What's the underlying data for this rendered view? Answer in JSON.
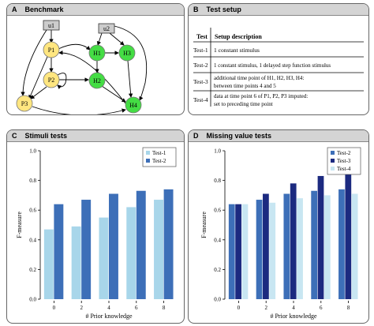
{
  "panels": {
    "A": {
      "letter": "A",
      "title": "Benchmark"
    },
    "B": {
      "letter": "B",
      "title": "Test setup"
    },
    "C": {
      "letter": "C",
      "title": "Stimuli tests"
    },
    "D": {
      "letter": "D",
      "title": "Missing value tests"
    }
  },
  "network": {
    "inputs": [
      "u1",
      "u2"
    ],
    "yellow_nodes": [
      "P1",
      "P2",
      "P3"
    ],
    "green_nodes": [
      "H1",
      "H2",
      "H3",
      "H4"
    ],
    "colors": {
      "yellow": "#ffe680",
      "green": "#44dd44",
      "input": "#cccccc"
    }
  },
  "setup_table": {
    "headers": [
      "Test",
      "Setup description"
    ],
    "rows": [
      {
        "test": "Test-1",
        "lines": [
          "1 constant stimulus"
        ]
      },
      {
        "test": "Test-2",
        "lines": [
          "1 constant stimulus, 1 delayed step function stimulus"
        ]
      },
      {
        "test": "Test-3",
        "lines": [
          "additional time point of H1, H2, H3, H4:",
          "between time points 4 and 5"
        ]
      },
      {
        "test": "Test-4",
        "lines": [
          "data at time point 6 of P1, P2, P3 imputed:",
          "set to preceding time point"
        ]
      }
    ]
  },
  "chart_data": [
    {
      "type": "bar",
      "title": "Stimuli tests",
      "xlabel": "# Prior knowledge",
      "ylabel": "F-measure",
      "categories": [
        "0",
        "2",
        "4",
        "6",
        "8"
      ],
      "ylim": [
        0,
        1
      ],
      "yticks": [
        "0.0",
        "0.2",
        "0.4",
        "0.6",
        "0.8",
        "1.0"
      ],
      "legend_position": "top-right",
      "series": [
        {
          "name": "Test-1",
          "color": "#a8d6ea",
          "values": [
            0.47,
            0.49,
            0.55,
            0.62,
            0.67
          ]
        },
        {
          "name": "Test-2",
          "color": "#3d6fb8",
          "values": [
            0.64,
            0.67,
            0.71,
            0.73,
            0.74
          ]
        }
      ]
    },
    {
      "type": "bar",
      "title": "Missing value tests",
      "xlabel": "# Prior knowledge",
      "ylabel": "F-measure",
      "categories": [
        "0",
        "2",
        "4",
        "6",
        "8"
      ],
      "ylim": [
        0,
        1
      ],
      "yticks": [
        "0.0",
        "0.2",
        "0.4",
        "0.6",
        "0.8",
        "1.0"
      ],
      "legend_position": "top-left",
      "series": [
        {
          "name": "Test-2",
          "color": "#3d6fb8",
          "values": [
            0.64,
            0.67,
            0.71,
            0.73,
            0.74
          ]
        },
        {
          "name": "Test-3",
          "color": "#1c2a80",
          "values": [
            0.64,
            0.71,
            0.78,
            0.83,
            0.86
          ]
        },
        {
          "name": "Test-4",
          "color": "#c8e6f2",
          "values": [
            0.64,
            0.65,
            0.68,
            0.7,
            0.71
          ]
        }
      ]
    }
  ]
}
